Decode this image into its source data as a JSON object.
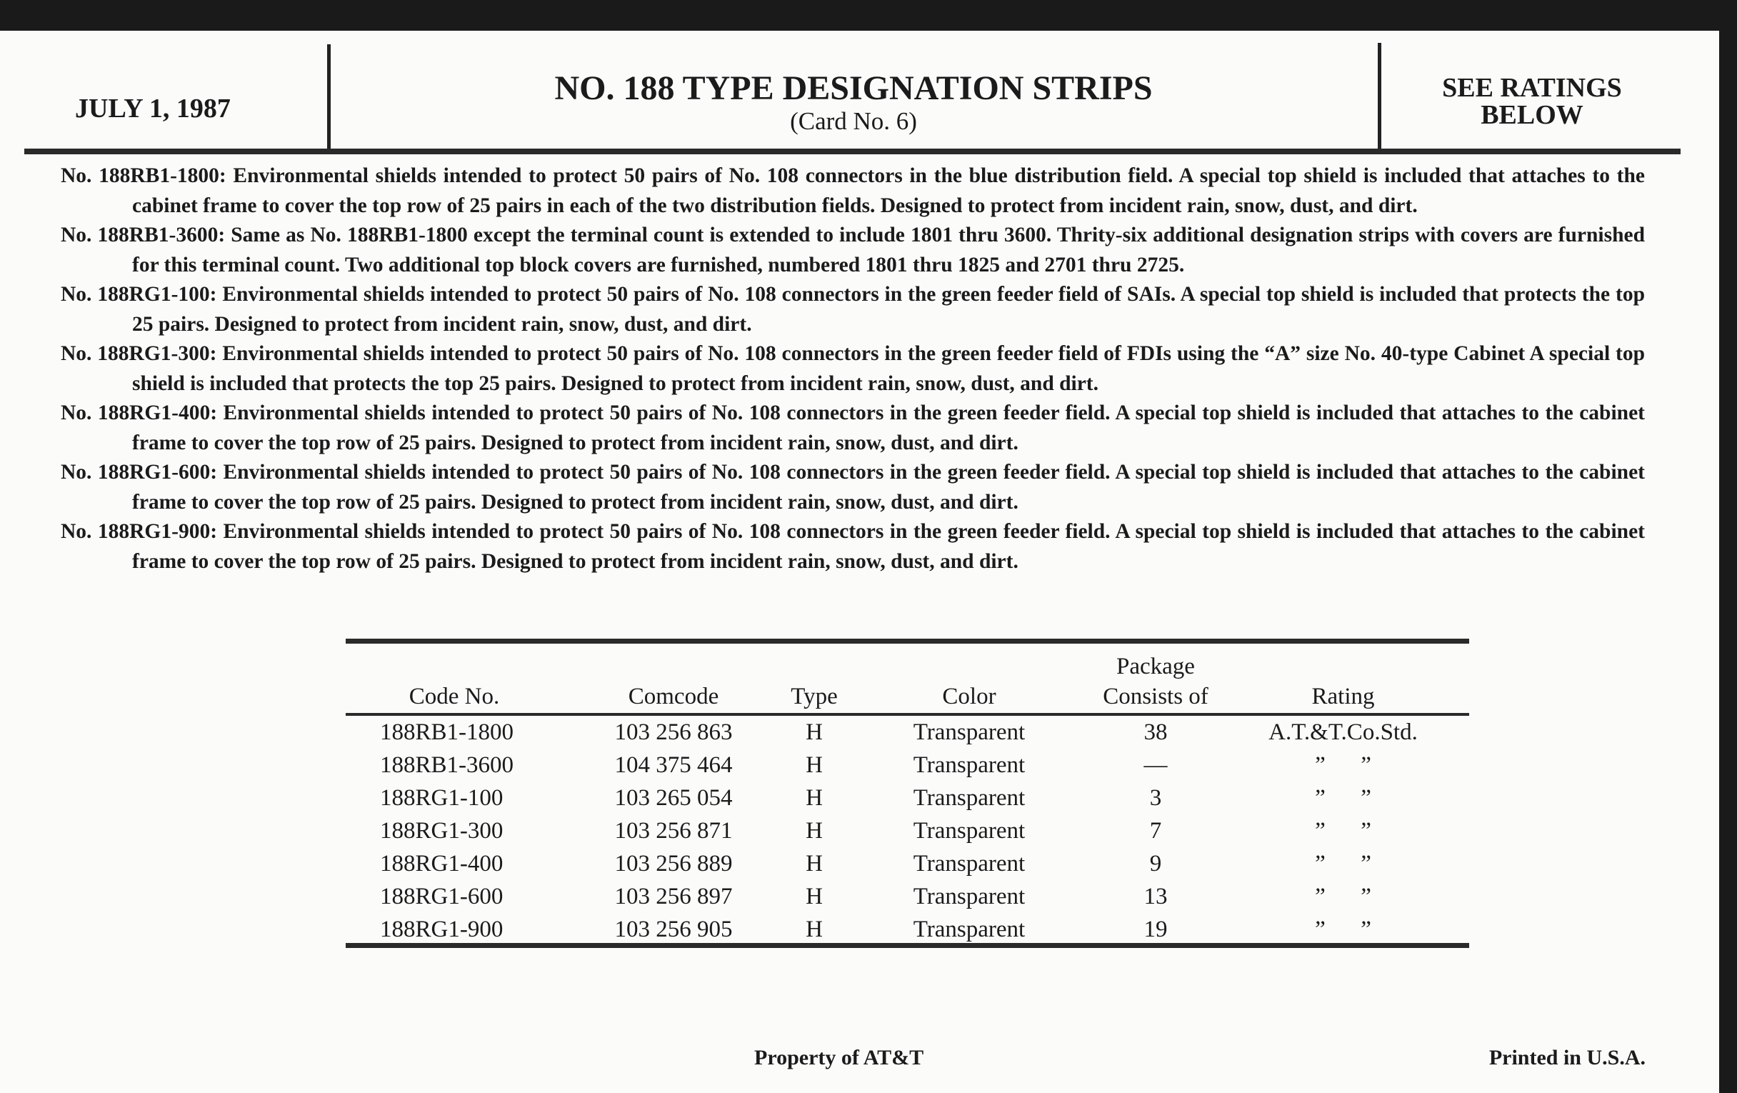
{
  "header": {
    "date": "JULY 1, 1987",
    "title": "NO. 188 TYPE DESIGNATION STRIPS",
    "subtitle": "(Card No. 6)",
    "ratings_line1": "SEE RATINGS",
    "ratings_line2": "BELOW"
  },
  "paragraphs": [
    "No. 188RB1-1800: Environmental shields intended to protect 50 pairs of No. 108 connectors in the blue distribution field. A special top shield is included that attaches to the cabinet frame to cover the top row of 25 pairs in each of the two distribution fields. Designed to protect from incident rain, snow, dust, and dirt.",
    "No. 188RB1-3600: Same as No. 188RB1-1800 except the terminal count is extended to include 1801 thru 3600. Thrity-six additional designation strips with covers are furnished for this terminal count. Two additional top block covers are furnished, numbered 1801 thru 1825 and 2701 thru 2725.",
    "No. 188RG1-100: Environmental shields intended to protect 50 pairs of No. 108 connectors in the green feeder field of SAIs. A special top shield is included that protects the top 25 pairs. Designed to protect from incident rain, snow, dust, and dirt.",
    "No. 188RG1-300: Environmental shields intended to protect 50 pairs of No. 108 connectors in the green feeder field of FDIs using the “A” size No. 40-type Cabinet A special top shield is included that protects the top 25 pairs. Designed to protect from incident rain, snow, dust, and dirt.",
    "No. 188RG1-400: Environmental shields intended to protect 50 pairs of No. 108 connectors in the green feeder field. A special top shield is included that attaches to the cabinet frame to cover the top row of 25 pairs. Designed to protect from incident rain, snow, dust, and dirt.",
    "No. 188RG1-600: Environmental shields intended to protect 50 pairs of No. 108 connectors in the green feeder field. A special top shield is included that attaches to the cabinet frame to cover the top row of 25 pairs. Designed to protect from incident rain, snow, dust, and dirt.",
    "No. 188RG1-900: Environmental shields intended to protect 50 pairs of No. 108 connectors in the green feeder field. A special top shield is included that attaches to the cabinet frame to cover the top row of 25 pairs. Designed to protect from incident rain, snow, dust, and dirt."
  ],
  "table": {
    "headers": {
      "code": "Code No.",
      "comcode": "Comcode",
      "type": "Type",
      "color": "Color",
      "package_line1": "Package",
      "package_line2": "Consists of",
      "rating": "Rating"
    },
    "rows": [
      {
        "code": "188RB1-1800",
        "comcode": "103 256 863",
        "type": "H",
        "color": "Transparent",
        "package": "38",
        "rating": "A.T.&T.Co.Std."
      },
      {
        "code": "188RB1-3600",
        "comcode": "104 375 464",
        "type": "H",
        "color": "Transparent",
        "package": "—",
        "rating": "”      ”"
      },
      {
        "code": "188RG1-100",
        "comcode": "103 265 054",
        "type": "H",
        "color": "Transparent",
        "package": "3",
        "rating": "”      ”"
      },
      {
        "code": "188RG1-300",
        "comcode": "103 256 871",
        "type": "H",
        "color": "Transparent",
        "package": "7",
        "rating": "”      ”"
      },
      {
        "code": "188RG1-400",
        "comcode": "103 256 889",
        "type": "H",
        "color": "Transparent",
        "package": "9",
        "rating": "”      ”"
      },
      {
        "code": "188RG1-600",
        "comcode": "103 256 897",
        "type": "H",
        "color": "Transparent",
        "package": "13",
        "rating": "”      ”"
      },
      {
        "code": "188RG1-900",
        "comcode": "103 256 905",
        "type": "H",
        "color": "Transparent",
        "package": "19",
        "rating": "”      ”"
      }
    ]
  },
  "footer": {
    "property": "Property of AT&T",
    "printed": "Printed in U.S.A."
  }
}
